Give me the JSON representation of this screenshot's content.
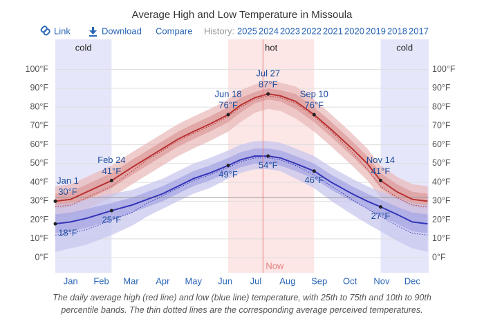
{
  "chart_data": {
    "type": "line",
    "title": "Average High and Low Temperature in Missoula",
    "links": [
      "Link",
      "Download",
      "Compare"
    ],
    "history_label": "History:",
    "years": [
      "2025",
      "2024",
      "2023",
      "2022",
      "2021",
      "2020",
      "2019",
      "2018",
      "2017"
    ],
    "caption": "The daily average high (red line) and low (blue line) temperature, with 25th to 75th and 10th to 90th percentile bands. The thin dotted lines are the corresponding average perceived temperatures.",
    "x": [
      0,
      15,
      31,
      55,
      75,
      90,
      105,
      120,
      135,
      151,
      169,
      181,
      195,
      208,
      220,
      235,
      253,
      270,
      290,
      305,
      318,
      334,
      349,
      364
    ],
    "xlim": [
      0,
      365
    ],
    "xticks": [
      {
        "value": 15,
        "label": "Jan"
      },
      {
        "value": 45,
        "label": "Feb"
      },
      {
        "value": 74,
        "label": "Mar"
      },
      {
        "value": 105,
        "label": "Apr"
      },
      {
        "value": 135,
        "label": "May"
      },
      {
        "value": 166,
        "label": "Jun"
      },
      {
        "value": 196,
        "label": "Jul"
      },
      {
        "value": 227,
        "label": "Aug"
      },
      {
        "value": 258,
        "label": "Sep"
      },
      {
        "value": 288,
        "label": "Oct"
      },
      {
        "value": 319,
        "label": "Nov"
      },
      {
        "value": 349,
        "label": "Dec"
      }
    ],
    "ylim": [
      -8,
      116
    ],
    "yticks": [
      {
        "value": 0,
        "label": "0°F"
      },
      {
        "value": 10,
        "label": "10°F"
      },
      {
        "value": 20,
        "label": "20°F"
      },
      {
        "value": 30,
        "label": "30°F"
      },
      {
        "value": 40,
        "label": "40°F"
      },
      {
        "value": 50,
        "label": "50°F"
      },
      {
        "value": 60,
        "label": "60°F"
      },
      {
        "value": 70,
        "label": "70°F"
      },
      {
        "value": 80,
        "label": "80°F"
      },
      {
        "value": 90,
        "label": "90°F"
      },
      {
        "value": 100,
        "label": "100°F"
      }
    ],
    "grid": true,
    "freezing_line": 32,
    "seasons": [
      {
        "label": "cold",
        "x": [
          0,
          55
        ],
        "color": "#e6e6fb"
      },
      {
        "label": "hot",
        "x": [
          169,
          253
        ],
        "color": "#fce6e6"
      },
      {
        "label": "cold",
        "x": [
          318,
          365
        ],
        "color": "#e6e6fb"
      }
    ],
    "now": {
      "label": "Now",
      "x": 203,
      "color": "#e88080"
    },
    "bands": [
      {
        "color": "#eab8b8",
        "lower": [
          21,
          22,
          26,
          32,
          39,
          44,
          49,
          54,
          58,
          62,
          67,
          72,
          77,
          79,
          78,
          74,
          67,
          59,
          49,
          41,
          32,
          26,
          22,
          21
        ],
        "upper": [
          38,
          39,
          43,
          49,
          56,
          61,
          66,
          71,
          75,
          79,
          84,
          89,
          92,
          94,
          93,
          91,
          84,
          76,
          66,
          58,
          49,
          43,
          39,
          38
        ]
      },
      {
        "color": "#dc9a9a",
        "lower": [
          26,
          27,
          31,
          37,
          44,
          49,
          54,
          59,
          63,
          67,
          72,
          77,
          82,
          84,
          83,
          79,
          72,
          64,
          54,
          46,
          37,
          31,
          27,
          26
        ],
        "upper": [
          34,
          35,
          39,
          45,
          52,
          57,
          62,
          67,
          71,
          75,
          80,
          85,
          88,
          90,
          89,
          87,
          80,
          72,
          62,
          54,
          45,
          39,
          35,
          34
        ]
      },
      {
        "color": "#c4c4ee",
        "lower": [
          3,
          5,
          7,
          12,
          17,
          22,
          26,
          30,
          34,
          37,
          42,
          45,
          47,
          47,
          46,
          42,
          37,
          30,
          23,
          18,
          14,
          9,
          5,
          3
        ],
        "upper": [
          28,
          29,
          31,
          34,
          36,
          39,
          42,
          46,
          50,
          53,
          57,
          60,
          62,
          62,
          61,
          58,
          54,
          48,
          42,
          38,
          35,
          32,
          29,
          28
        ]
      },
      {
        "color": "#a4a4e2",
        "lower": [
          13,
          14,
          16,
          20,
          24,
          27,
          30,
          34,
          38,
          41,
          45,
          48,
          50,
          50,
          49,
          46,
          42,
          36,
          30,
          26,
          22,
          18,
          14,
          13
        ],
        "upper": [
          23,
          24,
          26,
          29,
          32,
          35,
          38,
          42,
          46,
          49,
          53,
          56,
          58,
          58,
          57,
          54,
          50,
          44,
          38,
          34,
          31,
          27,
          24,
          23
        ]
      }
    ],
    "series": [
      {
        "color": "#b83232",
        "values": [
          30,
          31,
          35,
          41,
          48,
          53,
          58,
          63,
          67,
          71,
          76,
          81,
          85,
          87,
          86,
          83,
          76,
          68,
          58,
          50,
          41,
          35,
          31,
          30
        ]
      },
      {
        "color": "#b83232",
        "dotted": true,
        "values": [
          27,
          28,
          32,
          38,
          46,
          52,
          57,
          62,
          66,
          70,
          75,
          80,
          84,
          86,
          85,
          82,
          75,
          67,
          56,
          47,
          38,
          32,
          28,
          27
        ]
      },
      {
        "color": "#3535b8",
        "values": [
          18,
          19,
          21,
          25,
          28,
          31,
          34,
          38,
          42,
          45,
          49,
          52,
          54,
          54,
          53,
          50,
          46,
          40,
          34,
          30,
          27,
          23,
          19,
          18
        ]
      },
      {
        "color": "#3535b8",
        "dotted": true,
        "values": [
          12,
          13,
          15,
          20,
          24,
          29,
          33,
          37,
          41,
          44,
          48,
          51,
          53,
          53,
          52,
          49,
          44,
          38,
          31,
          26,
          22,
          17,
          13,
          12
        ]
      }
    ],
    "annotations": [
      {
        "x": 0,
        "date": "Jan 1",
        "value": 30,
        "label": "30°F",
        "side": "above"
      },
      {
        "x": 55,
        "date": "Feb 24",
        "value": 41,
        "label": "41°F",
        "side": "above"
      },
      {
        "x": 169,
        "date": "Jun 18",
        "value": 76,
        "label": "76°F",
        "side": "above"
      },
      {
        "x": 208,
        "date": "Jul 27",
        "value": 87,
        "label": "87°F",
        "side": "above"
      },
      {
        "x": 253,
        "date": "Sep 10",
        "value": 76,
        "label": "76°F",
        "side": "above"
      },
      {
        "x": 318,
        "date": "Nov 14",
        "value": 41,
        "label": "41°F",
        "side": "above"
      },
      {
        "x": 0,
        "value": 18,
        "label": "18°F",
        "side": "below"
      },
      {
        "x": 55,
        "value": 25,
        "label": "25°F",
        "side": "below"
      },
      {
        "x": 169,
        "value": 49,
        "label": "49°F",
        "side": "below"
      },
      {
        "x": 208,
        "value": 54,
        "label": "54°F",
        "side": "below"
      },
      {
        "x": 253,
        "value": 46,
        "label": "46°F",
        "side": "below"
      },
      {
        "x": 318,
        "value": 27,
        "label": "27°F",
        "side": "below"
      }
    ]
  }
}
